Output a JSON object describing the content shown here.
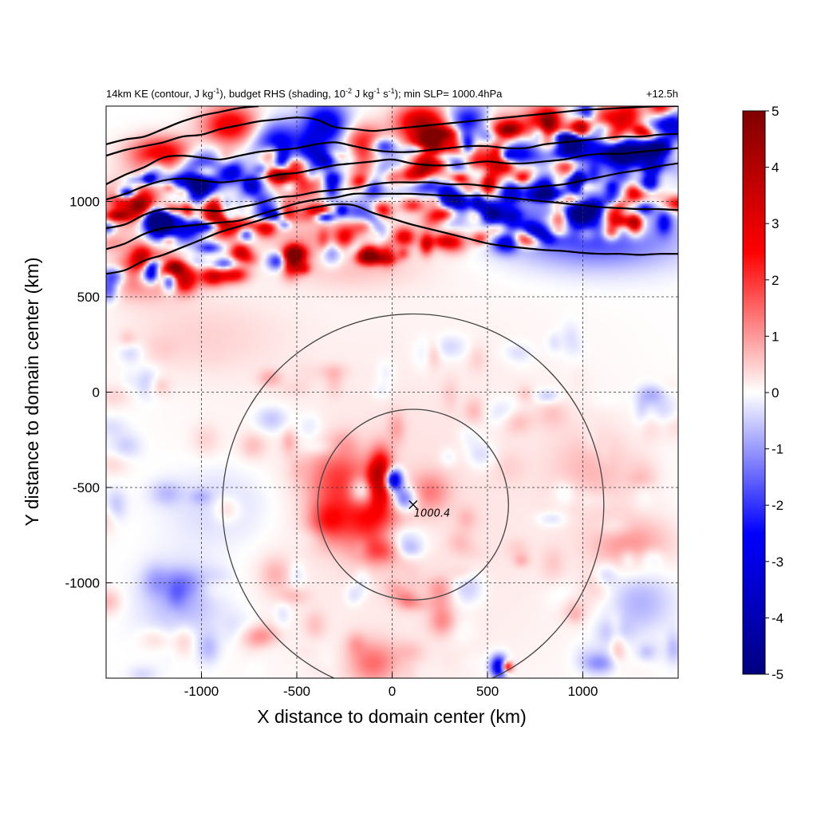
{
  "chart_data": {
    "type": "heatmap",
    "title_parts": {
      "a": "14km KE (contour, J kg",
      "a_sup": "-1",
      "b": "), budget RHS (shading, 10",
      "b_sup": "-2",
      "c": " J kg",
      "c_sup": "-1",
      "d": " s",
      "d_sup": "-1",
      "e": "); min SLP= 1000.4hPa"
    },
    "time_label": "+12.5h",
    "xlabel": "X distance to domain center (km)",
    "ylabel": "Y distance to domain center (km)",
    "xlim": [
      -1500,
      1500
    ],
    "ylim": [
      -1500,
      1500
    ],
    "x_ticks": [
      -1000,
      -500,
      0,
      500,
      1000
    ],
    "y_ticks": [
      -1000,
      -500,
      0,
      500,
      1000
    ],
    "x_tick_labels": [
      "-1000",
      "-500",
      "0",
      "500",
      "1000"
    ],
    "y_tick_labels": [
      "-1000",
      "-500",
      "0",
      "500",
      "1000"
    ],
    "grid": true,
    "colorbar": {
      "min": -5,
      "max": 5,
      "ticks": [
        5,
        4,
        3,
        2,
        1,
        0,
        -1,
        -2,
        -3,
        -4,
        -5
      ],
      "tick_labels": [
        "5",
        "4",
        "3",
        "2",
        "1",
        "0",
        "-1",
        "-2",
        "-3",
        "-4",
        "-5"
      ],
      "colors": [
        "#000080",
        "#0000ff",
        "#ffffff",
        "#ff0000",
        "#800000"
      ]
    },
    "min_slp_marker": {
      "x": 110,
      "y": -590,
      "label": "1000.4"
    },
    "range_circles": [
      {
        "center_x": 110,
        "center_y": -590,
        "radius_km": 500
      },
      {
        "center_x": 110,
        "center_y": -590,
        "radius_km": 1000
      }
    ],
    "ke_contours": [
      [
        [
          -1500,
          620
        ],
        [
          -1400,
          640
        ],
        [
          -1300,
          690
        ],
        [
          -1200,
          720
        ],
        [
          -1100,
          760
        ],
        [
          -1000,
          800
        ],
        [
          -900,
          840
        ],
        [
          -800,
          870
        ],
        [
          -700,
          900
        ],
        [
          -600,
          930
        ],
        [
          -500,
          950
        ],
        [
          -400,
          970
        ],
        [
          -300,
          985
        ],
        [
          -200,
          980
        ],
        [
          -100,
          940
        ],
        [
          0,
          910
        ],
        [
          100,
          880
        ],
        [
          200,
          855
        ],
        [
          300,
          830
        ],
        [
          400,
          805
        ],
        [
          500,
          780
        ],
        [
          600,
          765
        ],
        [
          700,
          755
        ],
        [
          800,
          745
        ],
        [
          900,
          740
        ],
        [
          1000,
          730
        ],
        [
          1100,
          725
        ],
        [
          1200,
          725
        ],
        [
          1300,
          720
        ],
        [
          1400,
          725
        ],
        [
          1500,
          725
        ]
      ],
      [
        [
          -1500,
          750
        ],
        [
          -1400,
          780
        ],
        [
          -1300,
          830
        ],
        [
          -1200,
          860
        ],
        [
          -1100,
          870
        ],
        [
          -1000,
          880
        ],
        [
          -900,
          890
        ],
        [
          -800,
          900
        ],
        [
          -700,
          930
        ],
        [
          -600,
          960
        ],
        [
          -500,
          990
        ],
        [
          -400,
          1010
        ],
        [
          -300,
          1020
        ],
        [
          -200,
          1040
        ],
        [
          -100,
          1040
        ],
        [
          0,
          1040
        ],
        [
          100,
          1040
        ],
        [
          200,
          1035
        ],
        [
          300,
          1030
        ],
        [
          400,
          1030
        ],
        [
          500,
          1030
        ],
        [
          600,
          1020
        ],
        [
          700,
          1010
        ],
        [
          800,
          1000
        ],
        [
          900,
          990
        ],
        [
          1000,
          980
        ],
        [
          1100,
          970
        ],
        [
          1200,
          965
        ],
        [
          1300,
          960
        ],
        [
          1400,
          960
        ],
        [
          1500,
          955
        ]
      ],
      [
        [
          -1500,
          860
        ],
        [
          -1400,
          880
        ],
        [
          -1300,
          930
        ],
        [
          -1200,
          960
        ],
        [
          -1100,
          960
        ],
        [
          -1000,
          955
        ],
        [
          -900,
          950
        ],
        [
          -800,
          970
        ],
        [
          -700,
          990
        ],
        [
          -600,
          1020
        ],
        [
          -500,
          1030
        ],
        [
          -400,
          1050
        ],
        [
          -300,
          1060
        ],
        [
          -200,
          1070
        ],
        [
          -100,
          1090
        ],
        [
          0,
          1100
        ],
        [
          100,
          1100
        ],
        [
          200,
          1100
        ],
        [
          300,
          1090
        ],
        [
          400,
          1090
        ],
        [
          500,
          1080
        ],
        [
          600,
          1070
        ],
        [
          700,
          1070
        ],
        [
          800,
          1080
        ],
        [
          900,
          1090
        ],
        [
          1000,
          1110
        ],
        [
          1100,
          1130
        ],
        [
          1200,
          1150
        ],
        [
          1300,
          1165
        ],
        [
          1400,
          1185
        ],
        [
          1500,
          1200
        ]
      ],
      [
        [
          -1500,
          1010
        ],
        [
          -1400,
          1040
        ],
        [
          -1300,
          1080
        ],
        [
          -1200,
          1110
        ],
        [
          -1100,
          1120
        ],
        [
          -1000,
          1110
        ],
        [
          -900,
          1100
        ],
        [
          -800,
          1110
        ],
        [
          -700,
          1120
        ],
        [
          -600,
          1140
        ],
        [
          -500,
          1150
        ],
        [
          -400,
          1170
        ],
        [
          -300,
          1190
        ],
        [
          -200,
          1200
        ],
        [
          -100,
          1210
        ],
        [
          0,
          1220
        ],
        [
          100,
          1200
        ],
        [
          200,
          1190
        ],
        [
          300,
          1190
        ],
        [
          400,
          1200
        ],
        [
          500,
          1210
        ],
        [
          600,
          1200
        ],
        [
          700,
          1200
        ],
        [
          800,
          1210
        ],
        [
          900,
          1220
        ],
        [
          1000,
          1240
        ],
        [
          1100,
          1250
        ],
        [
          1200,
          1250
        ],
        [
          1300,
          1260
        ],
        [
          1400,
          1270
        ],
        [
          1500,
          1280
        ]
      ],
      [
        [
          -1500,
          1090
        ],
        [
          -1400,
          1140
        ],
        [
          -1300,
          1180
        ],
        [
          -1200,
          1230
        ],
        [
          -1100,
          1240
        ],
        [
          -1000,
          1230
        ],
        [
          -900,
          1220
        ],
        [
          -800,
          1240
        ],
        [
          -700,
          1260
        ],
        [
          -600,
          1270
        ],
        [
          -500,
          1280
        ],
        [
          -400,
          1300
        ],
        [
          -300,
          1310
        ],
        [
          -200,
          1290
        ],
        [
          -100,
          1270
        ],
        [
          0,
          1260
        ],
        [
          100,
          1260
        ],
        [
          200,
          1270
        ],
        [
          300,
          1280
        ],
        [
          400,
          1290
        ],
        [
          500,
          1290
        ],
        [
          600,
          1280
        ],
        [
          700,
          1280
        ],
        [
          800,
          1300
        ],
        [
          900,
          1310
        ],
        [
          1000,
          1320
        ],
        [
          1100,
          1330
        ],
        [
          1200,
          1340
        ],
        [
          1300,
          1340
        ],
        [
          1400,
          1350
        ],
        [
          1500,
          1355
        ]
      ],
      [
        [
          -1500,
          1240
        ],
        [
          -1400,
          1270
        ],
        [
          -1300,
          1290
        ],
        [
          -1200,
          1310
        ],
        [
          -1100,
          1340
        ],
        [
          -1000,
          1350
        ],
        [
          -900,
          1380
        ],
        [
          -800,
          1400
        ],
        [
          -700,
          1420
        ],
        [
          -600,
          1430
        ],
        [
          -500,
          1440
        ],
        [
          -400,
          1430
        ],
        [
          -300,
          1390
        ],
        [
          -200,
          1380
        ],
        [
          -100,
          1370
        ],
        [
          0,
          1380
        ],
        [
          100,
          1390
        ],
        [
          200,
          1400
        ],
        [
          300,
          1410
        ],
        [
          400,
          1420
        ],
        [
          500,
          1430
        ],
        [
          600,
          1440
        ],
        [
          700,
          1450
        ],
        [
          800,
          1460
        ],
        [
          900,
          1470
        ],
        [
          1000,
          1480
        ],
        [
          1100,
          1485
        ],
        [
          1200,
          1490
        ],
        [
          1300,
          1495
        ],
        [
          1400,
          1500
        ],
        [
          1500,
          1500
        ]
      ],
      [
        [
          -1500,
          1300
        ],
        [
          -1400,
          1325
        ],
        [
          -1300,
          1340
        ],
        [
          -1200,
          1380
        ],
        [
          -1100,
          1420
        ],
        [
          -1000,
          1450
        ],
        [
          -900,
          1470
        ],
        [
          -800,
          1490
        ],
        [
          -700,
          1500
        ]
      ]
    ],
    "shading_features": [
      {
        "x": 110,
        "y": -590,
        "sx": 700,
        "sy": 700,
        "amp": 0.3
      },
      {
        "x": -280,
        "y": -450,
        "sx": 120,
        "sy": 110,
        "amp": 1.6
      },
      {
        "x": -120,
        "y": -660,
        "sx": 110,
        "sy": 120,
        "amp": 2.2
      },
      {
        "x": -340,
        "y": -680,
        "sx": 70,
        "sy": 80,
        "amp": 1.8
      },
      {
        "x": -60,
        "y": -440,
        "sx": 40,
        "sy": 90,
        "amp": 3.8
      },
      {
        "x": 0,
        "y": -460,
        "sx": 35,
        "sy": 40,
        "amp": -4.8
      },
      {
        "x": -160,
        "y": -520,
        "sx": 50,
        "sy": 55,
        "amp": -2.0
      },
      {
        "x": 60,
        "y": -560,
        "sx": 45,
        "sy": 45,
        "amp": -2.0
      },
      {
        "x": 200,
        "y": -520,
        "sx": 70,
        "sy": 70,
        "amp": 1.0
      },
      {
        "x": 30,
        "y": -780,
        "sx": 90,
        "sy": 60,
        "amp": -1.2
      },
      {
        "x": -60,
        "y": -830,
        "sx": 80,
        "sy": 50,
        "amp": 1.3
      },
      {
        "x": 560,
        "y": -1440,
        "sx": 30,
        "sy": 40,
        "amp": -3.5
      },
      {
        "x": 600,
        "y": -1440,
        "sx": 20,
        "sy": 20,
        "amp": 3.5
      },
      {
        "x": -100,
        "y": -1420,
        "sx": 90,
        "sy": 80,
        "amp": 1.3
      },
      {
        "x": -1100,
        "y": -1100,
        "sx": 150,
        "sy": 150,
        "amp": -0.8
      },
      {
        "x": 1250,
        "y": -800,
        "sx": 150,
        "sy": 100,
        "amp": 1.0
      },
      {
        "x": 1300,
        "y": -1100,
        "sx": 120,
        "sy": 120,
        "amp": -0.8
      },
      {
        "x": -900,
        "y": -600,
        "sx": 200,
        "sy": 150,
        "amp": -0.5
      },
      {
        "x": 1050,
        "y": -400,
        "sx": 150,
        "sy": 150,
        "amp": 0.6
      },
      {
        "x": -1300,
        "y": 650,
        "sx": 150,
        "sy": 90,
        "amp": 2.6
      },
      {
        "x": -1150,
        "y": 880,
        "sx": 90,
        "sy": 70,
        "amp": -3.5
      },
      {
        "x": -1350,
        "y": 1000,
        "sx": 90,
        "sy": 80,
        "amp": 3.5
      },
      {
        "x": -1000,
        "y": 1150,
        "sx": 80,
        "sy": 80,
        "amp": -3.8
      },
      {
        "x": -1200,
        "y": 1250,
        "sx": 120,
        "sy": 60,
        "amp": 3.0
      },
      {
        "x": -950,
        "y": 1000,
        "sx": 70,
        "sy": 70,
        "amp": 3.0
      },
      {
        "x": -850,
        "y": 1400,
        "sx": 100,
        "sy": 70,
        "amp": 3.0
      },
      {
        "x": -600,
        "y": 1300,
        "sx": 90,
        "sy": 80,
        "amp": -3.0
      },
      {
        "x": -700,
        "y": 980,
        "sx": 80,
        "sy": 70,
        "amp": -2.6
      },
      {
        "x": -500,
        "y": 1100,
        "sx": 100,
        "sy": 70,
        "amp": 2.5
      },
      {
        "x": -350,
        "y": 1400,
        "sx": 80,
        "sy": 80,
        "amp": -3.5
      },
      {
        "x": -150,
        "y": 1300,
        "sx": 80,
        "sy": 70,
        "amp": 2.5
      },
      {
        "x": 0,
        "y": 1150,
        "sx": 80,
        "sy": 60,
        "amp": -2.5
      },
      {
        "x": 150,
        "y": 1420,
        "sx": 90,
        "sy": 60,
        "amp": 3.5
      },
      {
        "x": 250,
        "y": 1300,
        "sx": 100,
        "sy": 70,
        "amp": 4.0
      },
      {
        "x": 400,
        "y": 1420,
        "sx": 80,
        "sy": 60,
        "amp": -3.0
      },
      {
        "x": 550,
        "y": 1350,
        "sx": 80,
        "sy": 70,
        "amp": 3.0
      },
      {
        "x": 700,
        "y": 1250,
        "sx": 80,
        "sy": 70,
        "amp": -2.5
      },
      {
        "x": 800,
        "y": 1400,
        "sx": 80,
        "sy": 70,
        "amp": 3.5
      },
      {
        "x": 950,
        "y": 1300,
        "sx": 90,
        "sy": 70,
        "amp": -3.0
      },
      {
        "x": 1150,
        "y": 1420,
        "sx": 80,
        "sy": 60,
        "amp": 3.0
      },
      {
        "x": 1300,
        "y": 1250,
        "sx": 140,
        "sy": 80,
        "amp": -4.0
      },
      {
        "x": 1450,
        "y": 1400,
        "sx": 60,
        "sy": 60,
        "amp": -3.5
      },
      {
        "x": 700,
        "y": 900,
        "sx": 350,
        "sy": 100,
        "amp": -1.2
      },
      {
        "x": 1100,
        "y": 800,
        "sx": 300,
        "sy": 110,
        "amp": -1.6
      },
      {
        "x": 300,
        "y": 850,
        "sx": 250,
        "sy": 80,
        "amp": 0.7
      },
      {
        "x": -400,
        "y": 800,
        "sx": 200,
        "sy": 80,
        "amp": 0.8
      },
      {
        "x": -200,
        "y": 650,
        "sx": 250,
        "sy": 80,
        "amp": 0.5
      },
      {
        "x": -1000,
        "y": 300,
        "sx": 300,
        "sy": 150,
        "amp": 0.4
      }
    ]
  }
}
